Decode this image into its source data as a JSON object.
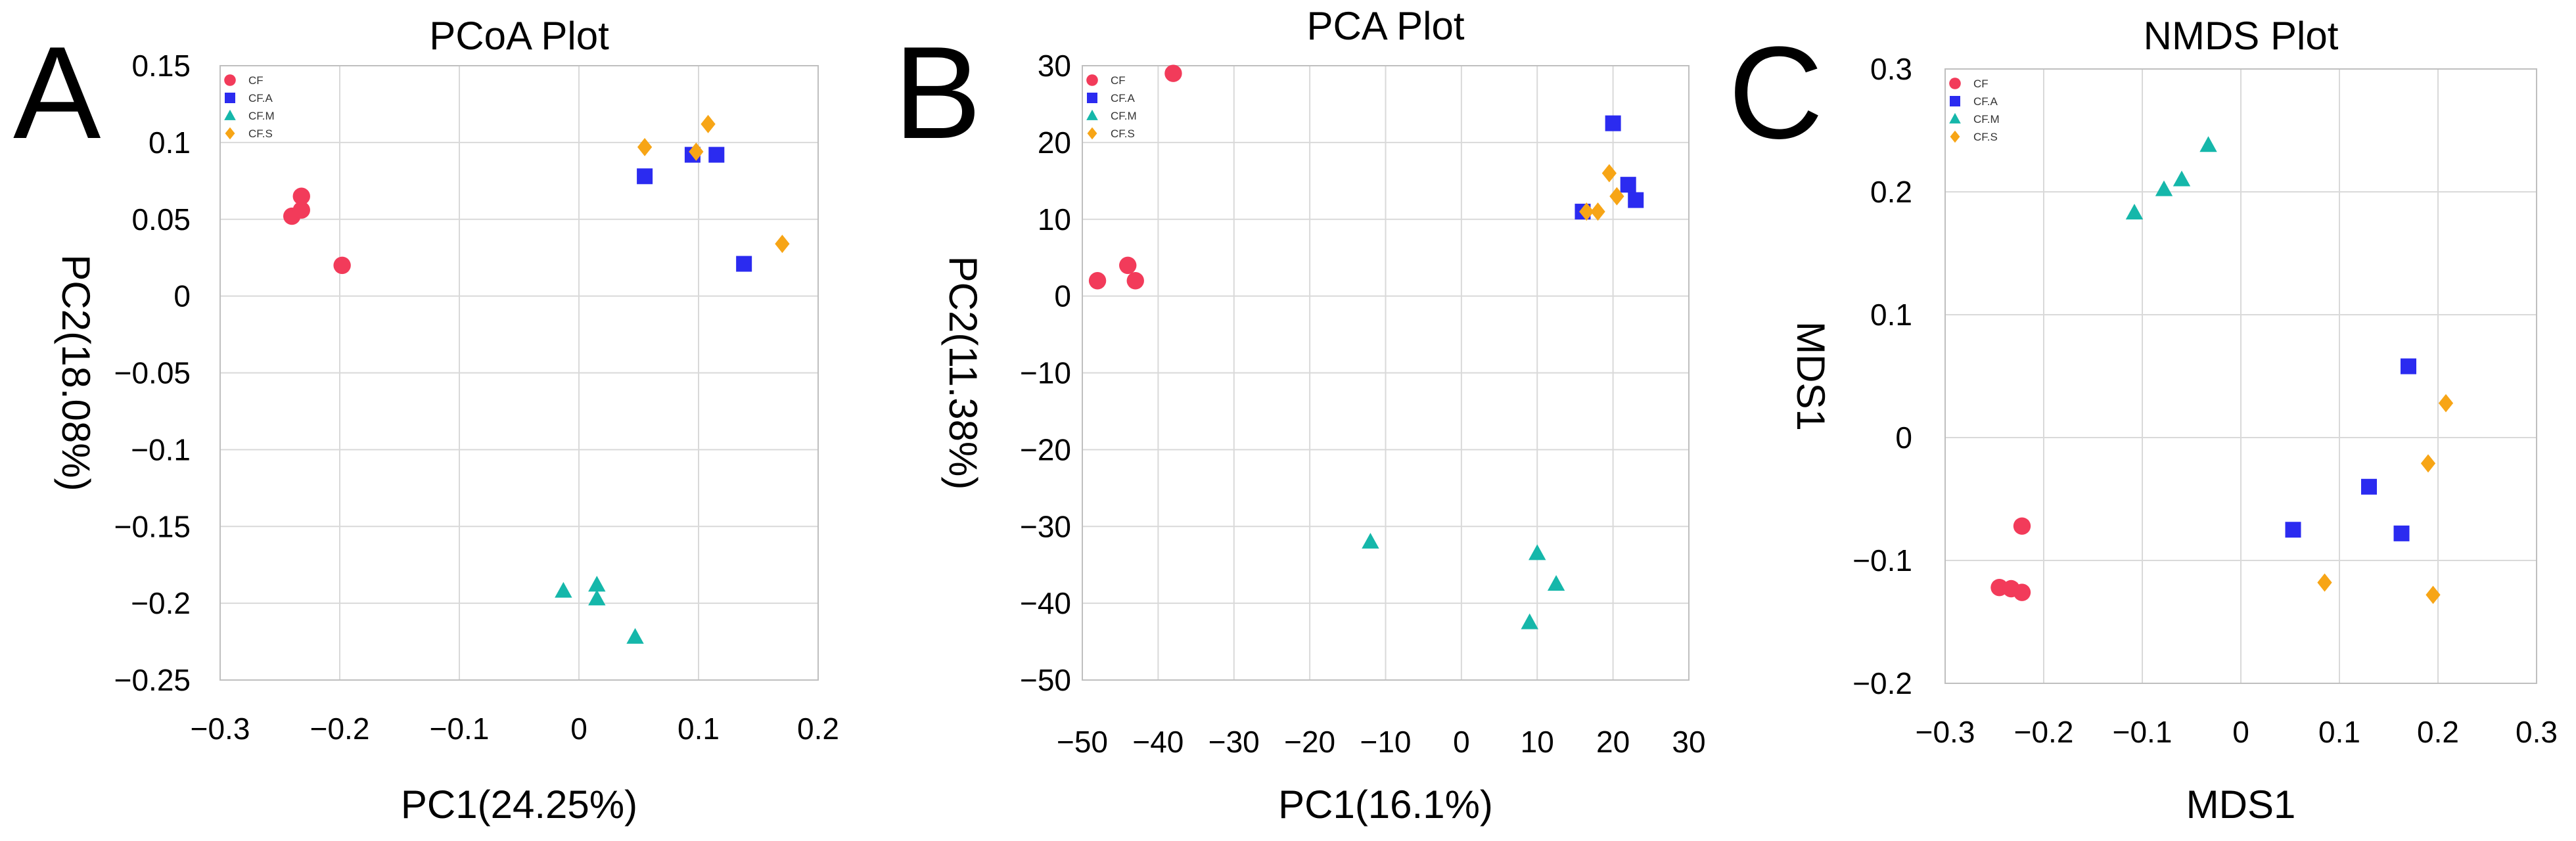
{
  "chart_data": [
    {
      "type": "scatter",
      "panel_label": "A",
      "title": "PCoA Plot",
      "xlabel": "PC1(24.25%)",
      "ylabel": "PC2(18.08%)",
      "xlim": [
        -0.3,
        0.2
      ],
      "ylim": [
        -0.25,
        0.15
      ],
      "xticks": [
        -0.3,
        -0.2,
        -0.1,
        0,
        0.1,
        0.2
      ],
      "xtick_labels": [
        "−0.3",
        "−0.2",
        "−0.1",
        "0",
        "0.1",
        "0.2"
      ],
      "yticks": [
        -0.25,
        -0.2,
        -0.15,
        -0.1,
        -0.05,
        0,
        0.05,
        0.1,
        0.15
      ],
      "ytick_labels": [
        "−0.25",
        "−0.2",
        "−0.15",
        "−0.1",
        "−0.05",
        "0",
        "0.05",
        "0.1",
        "0.15"
      ],
      "grid": true,
      "legend_position": "top-left",
      "series": [
        {
          "name": "CF",
          "points": [
            [
              -0.24,
              0.052
            ],
            [
              -0.232,
              0.065
            ],
            [
              -0.232,
              0.056
            ],
            [
              -0.198,
              0.02
            ]
          ]
        },
        {
          "name": "CF.A",
          "points": [
            [
              0.055,
              0.078
            ],
            [
              0.095,
              0.092
            ],
            [
              0.115,
              0.092
            ],
            [
              0.138,
              0.021
            ]
          ]
        },
        {
          "name": "CF.M",
          "points": [
            [
              -0.013,
              -0.192
            ],
            [
              0.015,
              -0.188
            ],
            [
              0.015,
              -0.197
            ],
            [
              0.047,
              -0.222
            ]
          ]
        },
        {
          "name": "CF.S",
          "points": [
            [
              0.055,
              0.097
            ],
            [
              0.098,
              0.094
            ],
            [
              0.108,
              0.112
            ],
            [
              0.17,
              0.034
            ]
          ]
        }
      ]
    },
    {
      "type": "scatter",
      "panel_label": "B",
      "title": "PCA Plot",
      "xlabel": "PC1(16.1%)",
      "ylabel": "PC2(11.38%)",
      "xlim": [
        -50,
        30
      ],
      "ylim": [
        -50,
        30
      ],
      "xticks": [
        -50,
        -40,
        -30,
        -20,
        -10,
        0,
        10,
        20,
        30
      ],
      "xtick_labels": [
        "−50",
        "−40",
        "−30",
        "−20",
        "−10",
        "0",
        "10",
        "20",
        "30"
      ],
      "yticks": [
        -50,
        -40,
        -30,
        -20,
        -10,
        0,
        10,
        20,
        30
      ],
      "ytick_labels": [
        "−50",
        "−40",
        "−30",
        "−20",
        "−10",
        "0",
        "10",
        "20",
        "30"
      ],
      "grid": true,
      "legend_position": "top-left",
      "series": [
        {
          "name": "CF",
          "points": [
            [
              -48,
              2
            ],
            [
              -44,
              4
            ],
            [
              -43,
              2
            ],
            [
              -38,
              29
            ]
          ]
        },
        {
          "name": "CF.A",
          "points": [
            [
              16,
              11
            ],
            [
              20,
              22.5
            ],
            [
              22,
              14.5
            ],
            [
              23,
              12.5
            ]
          ]
        },
        {
          "name": "CF.M",
          "points": [
            [
              -12,
              -32
            ],
            [
              9,
              -42.5
            ],
            [
              10,
              -33.5
            ],
            [
              12.5,
              -37.5
            ]
          ]
        },
        {
          "name": "CF.S",
          "points": [
            [
              16.5,
              11
            ],
            [
              18,
              11
            ],
            [
              19.5,
              16
            ],
            [
              20.5,
              13
            ]
          ]
        }
      ]
    },
    {
      "type": "scatter",
      "panel_label": "C",
      "title": "NMDS Plot",
      "xlabel": "MDS1",
      "ylabel": "MDS1",
      "xlim": [
        -0.3,
        0.3
      ],
      "ylim": [
        -0.2,
        0.3
      ],
      "xticks": [
        -0.3,
        -0.2,
        -0.1,
        0,
        0.1,
        0.2,
        0.3
      ],
      "xtick_labels": [
        "−0.3",
        "−0.2",
        "−0.1",
        "0",
        "0.1",
        "0.2",
        "0.3"
      ],
      "yticks": [
        -0.2,
        -0.1,
        0,
        0.1,
        0.2,
        0.3
      ],
      "ytick_labels": [
        "−0.2",
        "−0.1",
        "0",
        "0.1",
        "0.2",
        "0.3"
      ],
      "grid": true,
      "legend_position": "top-left",
      "series": [
        {
          "name": "CF",
          "points": [
            [
              -0.245,
              -0.122
            ],
            [
              -0.233,
              -0.123
            ],
            [
              -0.222,
              -0.126
            ],
            [
              -0.222,
              -0.072
            ]
          ]
        },
        {
          "name": "CF.A",
          "points": [
            [
              0.053,
              -0.075
            ],
            [
              0.13,
              -0.04
            ],
            [
              0.163,
              -0.078
            ],
            [
              0.17,
              0.058
            ]
          ]
        },
        {
          "name": "CF.M",
          "points": [
            [
              -0.108,
              0.183
            ],
            [
              -0.078,
              0.202
            ],
            [
              -0.06,
              0.21
            ],
            [
              -0.033,
              0.238
            ]
          ]
        },
        {
          "name": "CF.S",
          "points": [
            [
              0.085,
              -0.118
            ],
            [
              0.19,
              -0.021
            ],
            [
              0.195,
              -0.128
            ],
            [
              0.208,
              0.028
            ]
          ]
        }
      ]
    }
  ],
  "styles": {
    "colors": {
      "CF": "#f23b5a",
      "CF.A": "#2b2bf0",
      "CF.M": "#15b7aa",
      "CF.S": "#f7a516"
    },
    "markers": {
      "CF": "circle",
      "CF.A": "square",
      "CF.M": "triangle",
      "CF.S": "diamond"
    }
  }
}
